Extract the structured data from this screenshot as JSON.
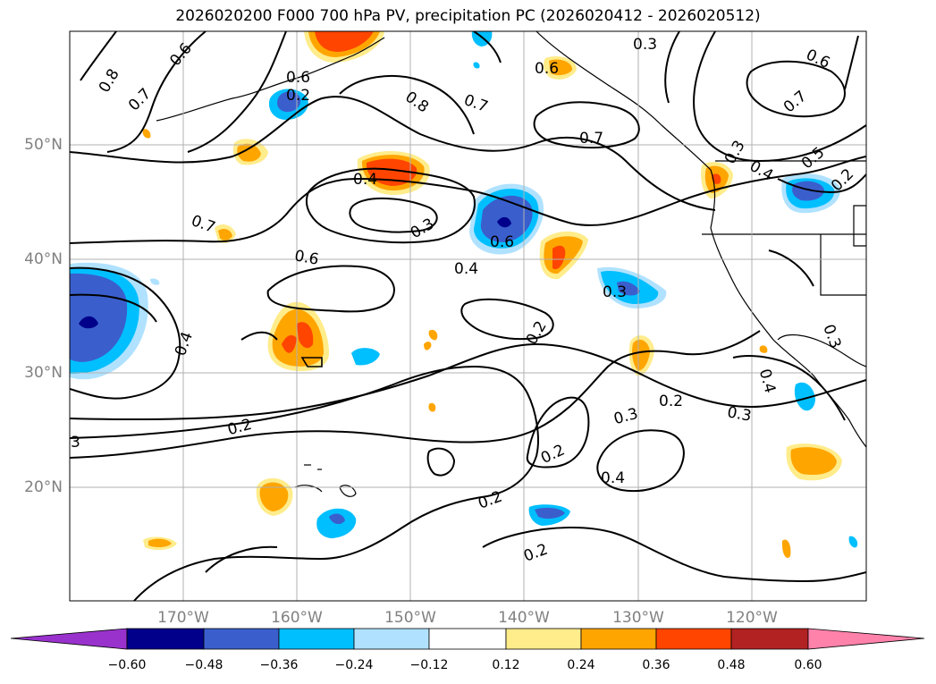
{
  "title": "2026020200 F000 700 hPa PV, precipitation PC (2026020412 - 2026020512)",
  "map": {
    "latitude_labels": [
      "50°N",
      "40°N",
      "30°N",
      "20°N"
    ],
    "longitude_labels": [
      "170°W",
      "160°W",
      "150°W",
      "140°W",
      "130°W",
      "120°W"
    ],
    "contour_labels": [
      "0.8",
      "0.6",
      "0.7",
      "0.6",
      "0.8",
      "0.7",
      "0.3",
      "0.6",
      "0.7",
      "0.6",
      "0.7",
      "0.3",
      "0.4",
      "0.5",
      "0.2",
      "0.4",
      "0.3",
      "0.7",
      "0.6",
      "0.6",
      "0.4",
      "0.3",
      "0.4",
      "0.2",
      "0.2",
      "0.3",
      "0.2",
      "0.3",
      "0.4",
      "0.2",
      "0.2",
      "0.3",
      "0.2",
      "0.4",
      "3",
      "0.2"
    ]
  },
  "colorbar": {
    "tick_labels": [
      "−0.60",
      "−0.48",
      "−0.36",
      "−0.24",
      "−0.12",
      "0.12",
      "0.24",
      "0.36",
      "0.48",
      "0.60"
    ],
    "colors": [
      "#9932cc",
      "#00008b",
      "#3a5fcd",
      "#00bfff",
      "#b0e2ff",
      "#ffffff",
      "#ffec8b",
      "#ffa500",
      "#ff4500",
      "#b22222",
      "#ff82ab"
    ]
  },
  "shading_colors": {
    "neg_strong": "#3a5fcd",
    "neg_mid": "#00bfff",
    "neg_weak": "#b0e2ff",
    "neg_extreme": "#00008b",
    "pos_weak": "#ffec8b",
    "pos_mid": "#ffa500",
    "pos_strong": "#ff4500"
  }
}
